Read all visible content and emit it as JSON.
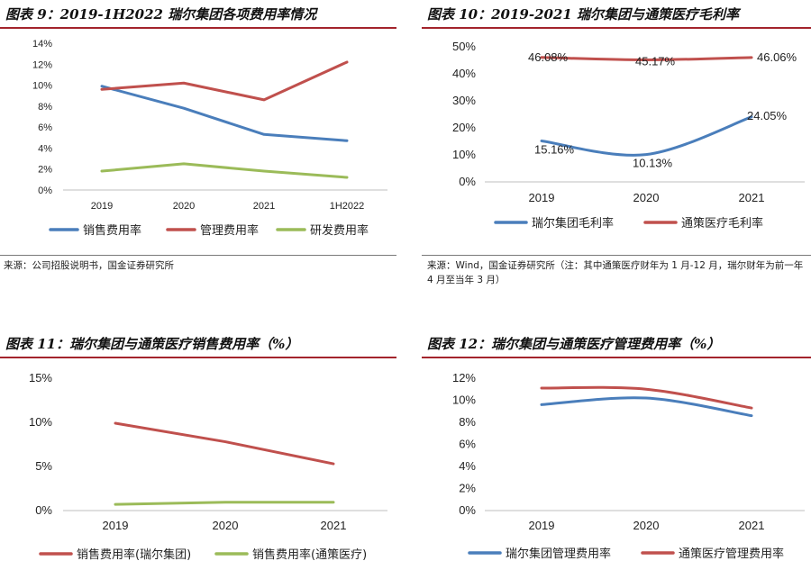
{
  "panels": [
    {
      "title": "图表 9：2019-1H2022 瑞尔集团各项费用率情况",
      "source": "来源：公司招股说明书，国金证券研究所"
    },
    {
      "title": "图表 10：2019-2021 瑞尔集团与通策医疗毛利率",
      "source": "来源：Wind，国金证券研究所（注：其中通策医疗财年为 1 月-12 月，瑞尔财年为前一年 4 月至当年 3 月）"
    },
    {
      "title": "图表 11：瑞尔集团与通策医疗销售费用率（%）",
      "source": ""
    },
    {
      "title": "图表 12：瑞尔集团与通策医疗管理费用率（%）",
      "source": ""
    }
  ],
  "chart_data": [
    {
      "type": "line",
      "categories": [
        "2019",
        "2020",
        "2021",
        "1H2022"
      ],
      "ylim": [
        0,
        14
      ],
      "yticks": [
        "0%",
        "2%",
        "4%",
        "6%",
        "8%",
        "10%",
        "12%",
        "14%"
      ],
      "legend_position": "bottom",
      "grid": false,
      "series": [
        {
          "name": "销售费用率",
          "color": "#4a7ebb",
          "values": [
            9.9,
            7.8,
            5.3,
            4.7
          ]
        },
        {
          "name": "管理费用率",
          "color": "#c0504d",
          "values": [
            9.6,
            10.2,
            8.6,
            12.2
          ]
        },
        {
          "name": "研发费用率",
          "color": "#9bbb59",
          "values": [
            1.8,
            2.5,
            1.8,
            1.2
          ]
        }
      ]
    },
    {
      "type": "line",
      "categories": [
        "2019",
        "2020",
        "2021"
      ],
      "ylim": [
        0,
        50
      ],
      "yticks": [
        "0%",
        "10%",
        "20%",
        "30%",
        "40%",
        "50%"
      ],
      "legend_position": "bottom",
      "grid": false,
      "series": [
        {
          "name": "瑞尔集团毛利率",
          "color": "#4a7ebb",
          "values": [
            15.16,
            10.13,
            24.05
          ],
          "labels": [
            "15.16%",
            "10.13%",
            "24.05%"
          ]
        },
        {
          "name": "通策医疗毛利率",
          "color": "#c0504d",
          "values": [
            46.08,
            45.17,
            46.06
          ],
          "labels": [
            "46.08%",
            "45.17%",
            "46.06%"
          ]
        }
      ]
    },
    {
      "type": "line",
      "categories": [
        "2019",
        "2020",
        "2021"
      ],
      "ylim": [
        0,
        15
      ],
      "yticks": [
        "0%",
        "5%",
        "10%",
        "15%"
      ],
      "legend_position": "bottom",
      "grid": false,
      "series": [
        {
          "name": "销售费用率(瑞尔集团)",
          "color": "#c0504d",
          "values": [
            9.9,
            7.8,
            5.3
          ]
        },
        {
          "name": "销售费用率(通策医疗)",
          "color": "#9bbb59",
          "values": [
            0.7,
            0.95,
            0.95
          ]
        }
      ]
    },
    {
      "type": "line",
      "categories": [
        "2019",
        "2020",
        "2021"
      ],
      "ylim": [
        0,
        12
      ],
      "yticks": [
        "0%",
        "2%",
        "4%",
        "6%",
        "8%",
        "10%",
        "12%"
      ],
      "legend_position": "bottom",
      "grid": false,
      "series": [
        {
          "name": "瑞尔集团管理费用率",
          "color": "#4a7ebb",
          "values": [
            9.6,
            10.2,
            8.6
          ]
        },
        {
          "name": "通策医疗管理费用率",
          "color": "#c0504d",
          "values": [
            11.1,
            11.0,
            9.3
          ]
        }
      ]
    }
  ]
}
